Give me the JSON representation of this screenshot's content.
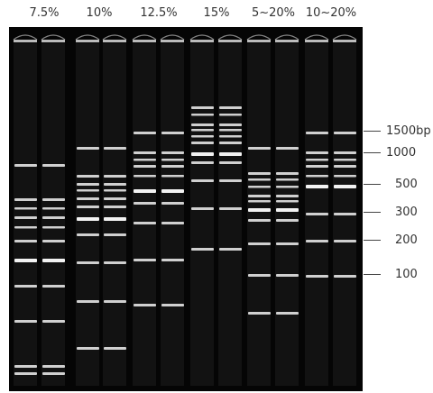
{
  "lanes": [
    {
      "label": "7.5%"
    },
    {
      "label": "10%"
    },
    {
      "label": "12.5%"
    },
    {
      "label": "15%"
    },
    {
      "label": "5~20%"
    },
    {
      "label": "10~20%"
    }
  ],
  "ladder": [
    "1500bp",
    "1000",
    "500",
    "300",
    "200",
    "100"
  ]
}
